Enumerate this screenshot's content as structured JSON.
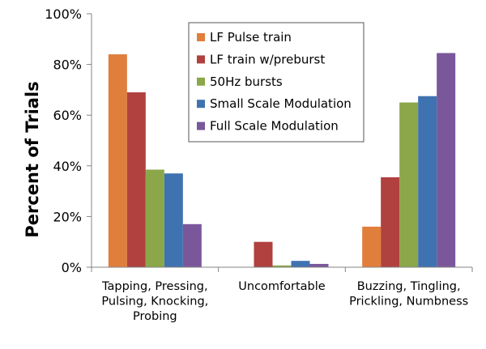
{
  "chart_data": {
    "type": "bar",
    "title": "",
    "xlabel": "",
    "ylabel": "Percent of Trials",
    "ylim": [
      0,
      100
    ],
    "yticks": [
      "0%",
      "20%",
      "40%",
      "60%",
      "80%",
      "100%"
    ],
    "ytick_values": [
      0,
      20,
      40,
      60,
      80,
      100
    ],
    "categories": [
      [
        "Tapping, Pressing,",
        "Pulsing, Knocking,",
        "Probing"
      ],
      [
        "Uncomfortable"
      ],
      [
        "Buzzing, Tingling,",
        "Prickling, Numbness"
      ]
    ],
    "series": [
      {
        "name": "LF Pulse train",
        "color": "#E07E3C",
        "values": [
          84,
          0,
          16
        ]
      },
      {
        "name": "LF train w/preburst",
        "color": "#B0413E",
        "values": [
          69,
          10,
          35.5
        ]
      },
      {
        "name": "50Hz bursts",
        "color": "#8BA74A",
        "values": [
          38.5,
          0.7,
          65
        ]
      },
      {
        "name": "Small Scale Modulation",
        "color": "#3F72B0",
        "values": [
          37,
          2.5,
          67.5
        ]
      },
      {
        "name": "Full Scale Modulation",
        "color": "#7A579B",
        "values": [
          17,
          1.3,
          84.5
        ]
      }
    ],
    "grid": false,
    "legend": "top-center",
    "legend_border": "#555555"
  }
}
